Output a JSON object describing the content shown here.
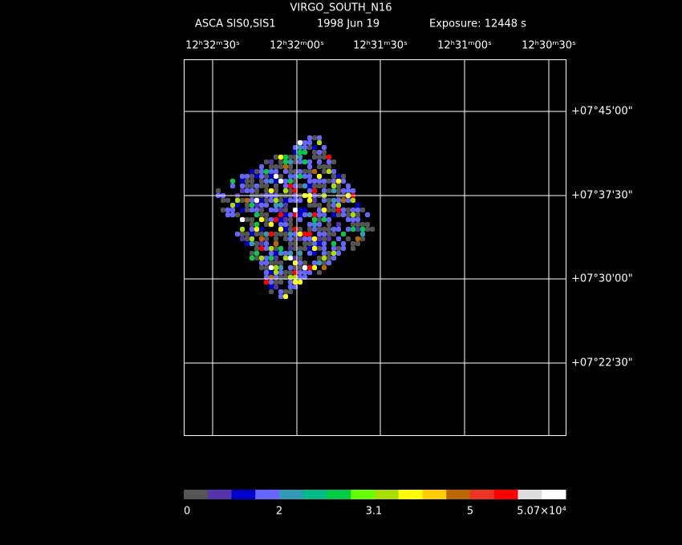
{
  "header": {
    "title": "VIRGO_SOUTH_N16",
    "instrument": "ASCA SIS0,SIS1",
    "date": "1998 Jun 19",
    "exposure": "Exposure: 12448 s"
  },
  "ra_labels": [
    "12ʰ32ᵐ30ˢ",
    "12ʰ32ᵐ00ˢ",
    "12ʰ31ᵐ30ˢ",
    "12ʰ31ᵐ00ˢ",
    "12ʰ30ᵐ30ˢ"
  ],
  "dec_labels": [
    "+07°45'00\"",
    "+07°37'30\"",
    "+07°30'00\"",
    "+07°22'30\""
  ],
  "colorbar": {
    "labels": [
      "0",
      "2",
      "3.1",
      "5",
      "5.07×10⁴"
    ],
    "colors": [
      "#555555",
      "#5533aa",
      "#0000cc",
      "#6666ff",
      "#3399bb",
      "#00bb88",
      "#00cc44",
      "#66ff00",
      "#aadd00",
      "#ffff00",
      "#ffcc00",
      "#bb6600",
      "#ee3322",
      "#ff0000",
      "#dddddd",
      "#ffffff"
    ]
  }
}
